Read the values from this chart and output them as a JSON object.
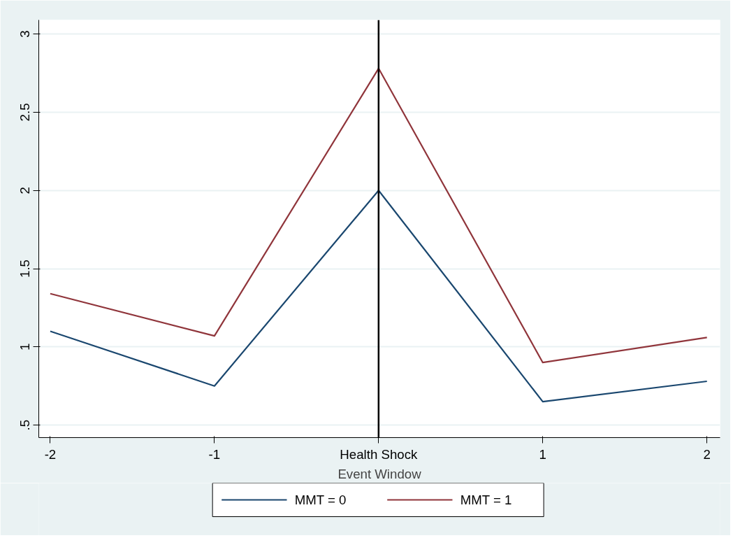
{
  "chart_data": {
    "type": "line",
    "xlabel": "Event Window",
    "x": [
      -2,
      -1,
      0,
      1,
      2
    ],
    "series": [
      {
        "name": "MMT = 0",
        "color": "#1a476f",
        "values": [
          1.1,
          0.75,
          2.0,
          0.65,
          0.78
        ]
      },
      {
        "name": "MMT = 1",
        "color": "#90353b",
        "values": [
          1.34,
          1.07,
          2.78,
          0.9,
          1.06
        ]
      }
    ],
    "xlim": [
      -2.07,
      2.08
    ],
    "ylim": [
      0.42,
      3.09
    ],
    "xticks": [
      -2,
      -1,
      {
        "value": 0,
        "label": "Health Shock"
      },
      1,
      2
    ],
    "yticks": [
      {
        "value": 0.5,
        "label": ".5"
      },
      1,
      1.5,
      2,
      2.5,
      3
    ],
    "ref_lines": [
      {
        "axis": "x",
        "value": 0,
        "color": "#000000"
      }
    ],
    "grid": "y",
    "legend": "bottom",
    "marker": "none",
    "line_style": "solid"
  }
}
